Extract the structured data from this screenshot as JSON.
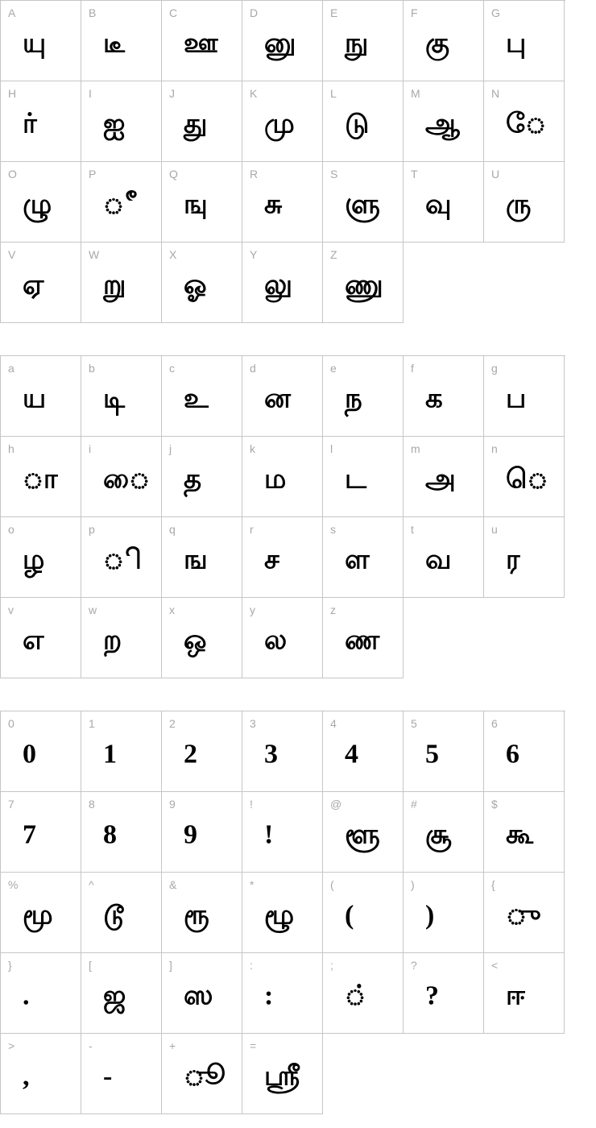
{
  "colors": {
    "label": "#a8a8a8",
    "border": "#c6c6c6",
    "glyph": "#000000",
    "background": "#ffffff"
  },
  "blocks": [
    {
      "id": "uppercase",
      "columns": 7,
      "cells": [
        {
          "label": "A",
          "glyph": "யு"
        },
        {
          "label": "B",
          "glyph": "டீ"
        },
        {
          "label": "C",
          "glyph": "ஊ"
        },
        {
          "label": "D",
          "glyph": "னு"
        },
        {
          "label": "E",
          "glyph": "நு"
        },
        {
          "label": "F",
          "glyph": "கு"
        },
        {
          "label": "G",
          "glyph": "பு"
        },
        {
          "label": "H",
          "glyph": "ர்"
        },
        {
          "label": "I",
          "glyph": "ஐ"
        },
        {
          "label": "J",
          "glyph": "து"
        },
        {
          "label": "K",
          "glyph": "மு"
        },
        {
          "label": "L",
          "glyph": "டு"
        },
        {
          "label": "M",
          "glyph": "ஆ"
        },
        {
          "label": "N",
          "glyph": "ே"
        },
        {
          "label": "O",
          "glyph": "ழு"
        },
        {
          "label": "P",
          "glyph": "ீ"
        },
        {
          "label": "Q",
          "glyph": "ஙு"
        },
        {
          "label": "R",
          "glyph": "சு"
        },
        {
          "label": "S",
          "glyph": "ளு"
        },
        {
          "label": "T",
          "glyph": "வு"
        },
        {
          "label": "U",
          "glyph": "ரு"
        },
        {
          "label": "V",
          "glyph": "ஏ"
        },
        {
          "label": "W",
          "glyph": "று"
        },
        {
          "label": "X",
          "glyph": "ஓ"
        },
        {
          "label": "Y",
          "glyph": "லு"
        },
        {
          "label": "Z",
          "glyph": "ணு"
        }
      ]
    },
    {
      "id": "lowercase",
      "columns": 7,
      "cells": [
        {
          "label": "a",
          "glyph": "ய"
        },
        {
          "label": "b",
          "glyph": "டி"
        },
        {
          "label": "c",
          "glyph": "உ"
        },
        {
          "label": "d",
          "glyph": "ன"
        },
        {
          "label": "e",
          "glyph": "ந"
        },
        {
          "label": "f",
          "glyph": "க"
        },
        {
          "label": "g",
          "glyph": "ப"
        },
        {
          "label": "h",
          "glyph": "ா"
        },
        {
          "label": "i",
          "glyph": "ை"
        },
        {
          "label": "j",
          "glyph": "த"
        },
        {
          "label": "k",
          "glyph": "ம"
        },
        {
          "label": "l",
          "glyph": "ட"
        },
        {
          "label": "m",
          "glyph": "அ"
        },
        {
          "label": "n",
          "glyph": "ெ"
        },
        {
          "label": "o",
          "glyph": "ழ"
        },
        {
          "label": "p",
          "glyph": "ி"
        },
        {
          "label": "q",
          "glyph": "ங"
        },
        {
          "label": "r",
          "glyph": "ச"
        },
        {
          "label": "s",
          "glyph": "ள"
        },
        {
          "label": "t",
          "glyph": "வ"
        },
        {
          "label": "u",
          "glyph": "ர"
        },
        {
          "label": "v",
          "glyph": "எ"
        },
        {
          "label": "w",
          "glyph": "ற"
        },
        {
          "label": "x",
          "glyph": "ஒ"
        },
        {
          "label": "y",
          "glyph": "ல"
        },
        {
          "label": "z",
          "glyph": "ண"
        }
      ]
    },
    {
      "id": "symbols",
      "columns": 7,
      "cells": [
        {
          "label": "0",
          "glyph": "0"
        },
        {
          "label": "1",
          "glyph": "1"
        },
        {
          "label": "2",
          "glyph": "2"
        },
        {
          "label": "3",
          "glyph": "3"
        },
        {
          "label": "4",
          "glyph": "4"
        },
        {
          "label": "5",
          "glyph": "5"
        },
        {
          "label": "6",
          "glyph": "6"
        },
        {
          "label": "7",
          "glyph": "7"
        },
        {
          "label": "8",
          "glyph": "8"
        },
        {
          "label": "9",
          "glyph": "9"
        },
        {
          "label": "!",
          "glyph": "!"
        },
        {
          "label": "@",
          "glyph": "ளூ"
        },
        {
          "label": "#",
          "glyph": "சூ"
        },
        {
          "label": "$",
          "glyph": "கூ"
        },
        {
          "label": "%",
          "glyph": "மூ"
        },
        {
          "label": "^",
          "glyph": "டூ"
        },
        {
          "label": "&",
          "glyph": "ரூ"
        },
        {
          "label": "*",
          "glyph": "ழூ"
        },
        {
          "label": "(",
          "glyph": "("
        },
        {
          "label": ")",
          "glyph": ")"
        },
        {
          "label": "{",
          "glyph": "ு"
        },
        {
          "label": "}",
          "glyph": "."
        },
        {
          "label": "[",
          "glyph": "ஜ"
        },
        {
          "label": "]",
          "glyph": "ஸ"
        },
        {
          "label": ":",
          "glyph": ":"
        },
        {
          "label": ";",
          "glyph": "்"
        },
        {
          "label": "?",
          "glyph": "?"
        },
        {
          "label": "<",
          "glyph": "ஈ"
        },
        {
          "label": ">",
          "glyph": ","
        },
        {
          "label": "-",
          "glyph": "-"
        },
        {
          "label": "+",
          "glyph": "ூ"
        },
        {
          "label": "=",
          "glyph": "ஸ்ரீ"
        }
      ]
    }
  ]
}
